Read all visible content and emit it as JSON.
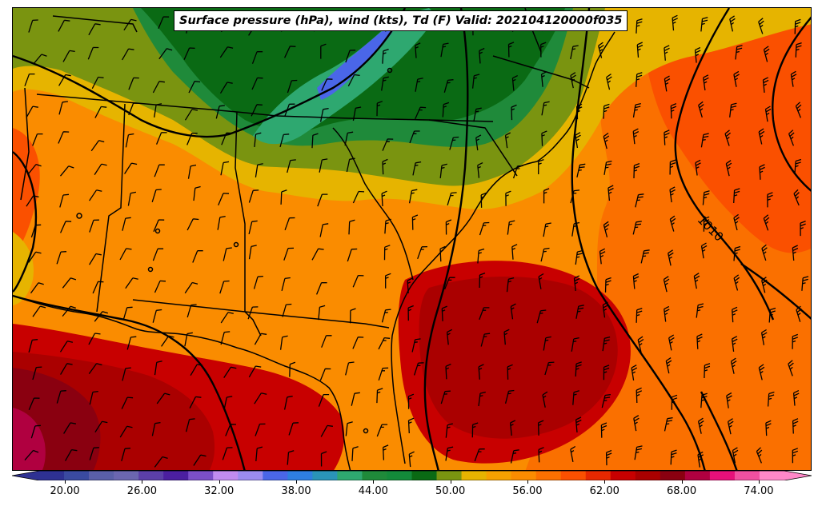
{
  "map": {
    "title": "Surface pressure (hPa), wind (kts), Td (F) Valid: 202104120000f035",
    "isobar_label": "1010",
    "region": "southeastern United States and Gulf of Mexico"
  },
  "colorbar": {
    "min": 18,
    "max": 76,
    "step": 2,
    "extend": "both",
    "tick_values": [
      20,
      26,
      32,
      38,
      44,
      50,
      56,
      62,
      68,
      74
    ],
    "tick_labels": [
      "20.00",
      "26.00",
      "32.00",
      "38.00",
      "44.00",
      "50.00",
      "56.00",
      "62.00",
      "68.00",
      "74.00"
    ],
    "colors": [
      "#2e3192",
      "#3a4aa0",
      "#5a5fa8",
      "#6b66b0",
      "#5b3fa8",
      "#4b1fa0",
      "#7b4fc8",
      "#c08cf0",
      "#9a8cf0",
      "#4a66e8",
      "#2e7fe0",
      "#2a94b8",
      "#2ea870",
      "#1f8a3a",
      "#138a3a",
      "#0a6a14",
      "#7a9410",
      "#e6b400",
      "#f6a000",
      "#fa8c00",
      "#fa7000",
      "#fa5000",
      "#e62800",
      "#c80000",
      "#aa0000",
      "#8a0010",
      "#b00040",
      "#e6107a",
      "#f050a0",
      "#ff88c8"
    ]
  },
  "fill_colors": {
    "blue": "#4a66e8",
    "teal": "#2ea870",
    "dark_green": "#0a6a14",
    "green": "#1f8a3a",
    "olive": "#7a9410",
    "yellow": "#e6b400",
    "light_orange": "#f6a000",
    "orange": "#fa8c00",
    "dark_orange": "#fa7000",
    "red_orange": "#fa5000",
    "red": "#c80000",
    "dark_red": "#aa0000",
    "maroon": "#8a0010",
    "magenta": "#b00040"
  }
}
